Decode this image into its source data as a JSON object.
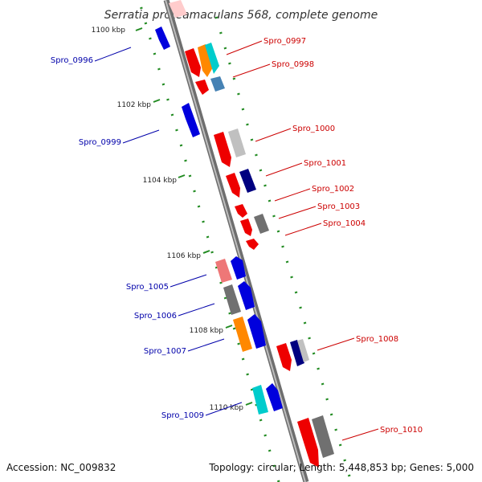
{
  "title": "Serratia proteamaculans 568, complete genome",
  "footer": {
    "accession": "Accession: NC_009832",
    "summary": "Topology: circular; Length: 5,448,853 bp; Genes: 5,000"
  },
  "ruler": [
    "1100 kbp",
    "1102 kbp",
    "1104 kbp",
    "1106 kbp",
    "1108 kbp",
    "1110 kbp"
  ],
  "labels": [
    {
      "text": "Spro_0997",
      "color": "#cc0000"
    },
    {
      "text": "Spro_0998",
      "color": "#cc0000"
    },
    {
      "text": "Spro_0996",
      "color": "#0000aa"
    },
    {
      "text": "Spro_0999",
      "color": "#0000aa"
    },
    {
      "text": "Spro_1000",
      "color": "#cc0000"
    },
    {
      "text": "Spro_1001",
      "color": "#cc0000"
    },
    {
      "text": "Spro_1002",
      "color": "#cc0000"
    },
    {
      "text": "Spro_1003",
      "color": "#cc0000"
    },
    {
      "text": "Spro_1004",
      "color": "#cc0000"
    },
    {
      "text": "Spro_1005",
      "color": "#0000aa"
    },
    {
      "text": "Spro_1006",
      "color": "#0000aa"
    },
    {
      "text": "Spro_1007",
      "color": "#0000aa"
    },
    {
      "text": "Spro_1008",
      "color": "#cc0000"
    },
    {
      "text": "Spro_1009",
      "color": "#0000aa"
    },
    {
      "text": "Spro_1010",
      "color": "#cc0000"
    }
  ],
  "colors": {
    "red": "#ee0000",
    "blue": "#0000dd",
    "navy": "#000080",
    "orange": "#ff8800",
    "cyan": "#00cccc",
    "gray": "#707070",
    "lightgray": "#c0c0c0",
    "pink": "#ee7777",
    "steel": "#4682b4",
    "backbone": "#888888",
    "ticks": "#228b22"
  }
}
